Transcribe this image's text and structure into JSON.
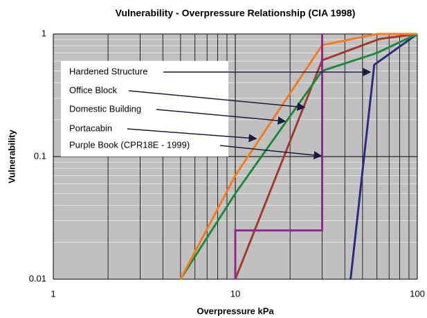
{
  "chart_data": {
    "type": "line",
    "title": "Vulnerability - Overpressure Relationship (CIA 1998)",
    "x_label": "Overpressure kPa",
    "y_label": "Vulnerability",
    "xscale": "log",
    "yscale": "log",
    "xlim": [
      1,
      100
    ],
    "ylim": [
      0.01,
      1
    ],
    "xticks": [
      1,
      10,
      100
    ],
    "yticks": [
      0.01,
      0.1,
      1
    ],
    "x_minor_ticks": [
      2,
      3,
      4,
      5,
      6,
      7,
      8,
      9,
      20,
      30,
      40,
      50,
      60,
      70,
      80,
      90
    ],
    "y_minor_ticks": [
      0.02,
      0.03,
      0.04,
      0.05,
      0.06,
      0.07,
      0.08,
      0.09,
      0.2,
      0.3,
      0.4,
      0.5,
      0.6,
      0.7,
      0.8,
      0.9
    ],
    "grid": true,
    "series": [
      {
        "name": "Hardened Structure",
        "color": "#2b2b7d",
        "x": [
          43,
          58,
          100
        ],
        "values": [
          0.01,
          0.56,
          1
        ]
      },
      {
        "name": "Office Block",
        "color": "#a33a2b",
        "x": [
          10,
          30,
          62,
          100
        ],
        "values": [
          0.01,
          0.61,
          0.91,
          1
        ]
      },
      {
        "name": "Domestic Building",
        "color": "#1b8a3e",
        "x": [
          5,
          10,
          30,
          60,
          100
        ],
        "values": [
          0.01,
          0.05,
          0.5,
          0.7,
          1
        ]
      },
      {
        "name": "Portacabin",
        "color": "#f47b20",
        "x": [
          5,
          10,
          30,
          60,
          100
        ],
        "values": [
          0.01,
          0.07,
          0.81,
          1,
          1
        ]
      },
      {
        "name": "Purple Book (CPR18E - 1999)",
        "color": "#8e2a8e",
        "x": [
          10,
          10,
          30,
          30
        ],
        "values": [
          0.01,
          0.025,
          0.025,
          1
        ]
      }
    ]
  }
}
